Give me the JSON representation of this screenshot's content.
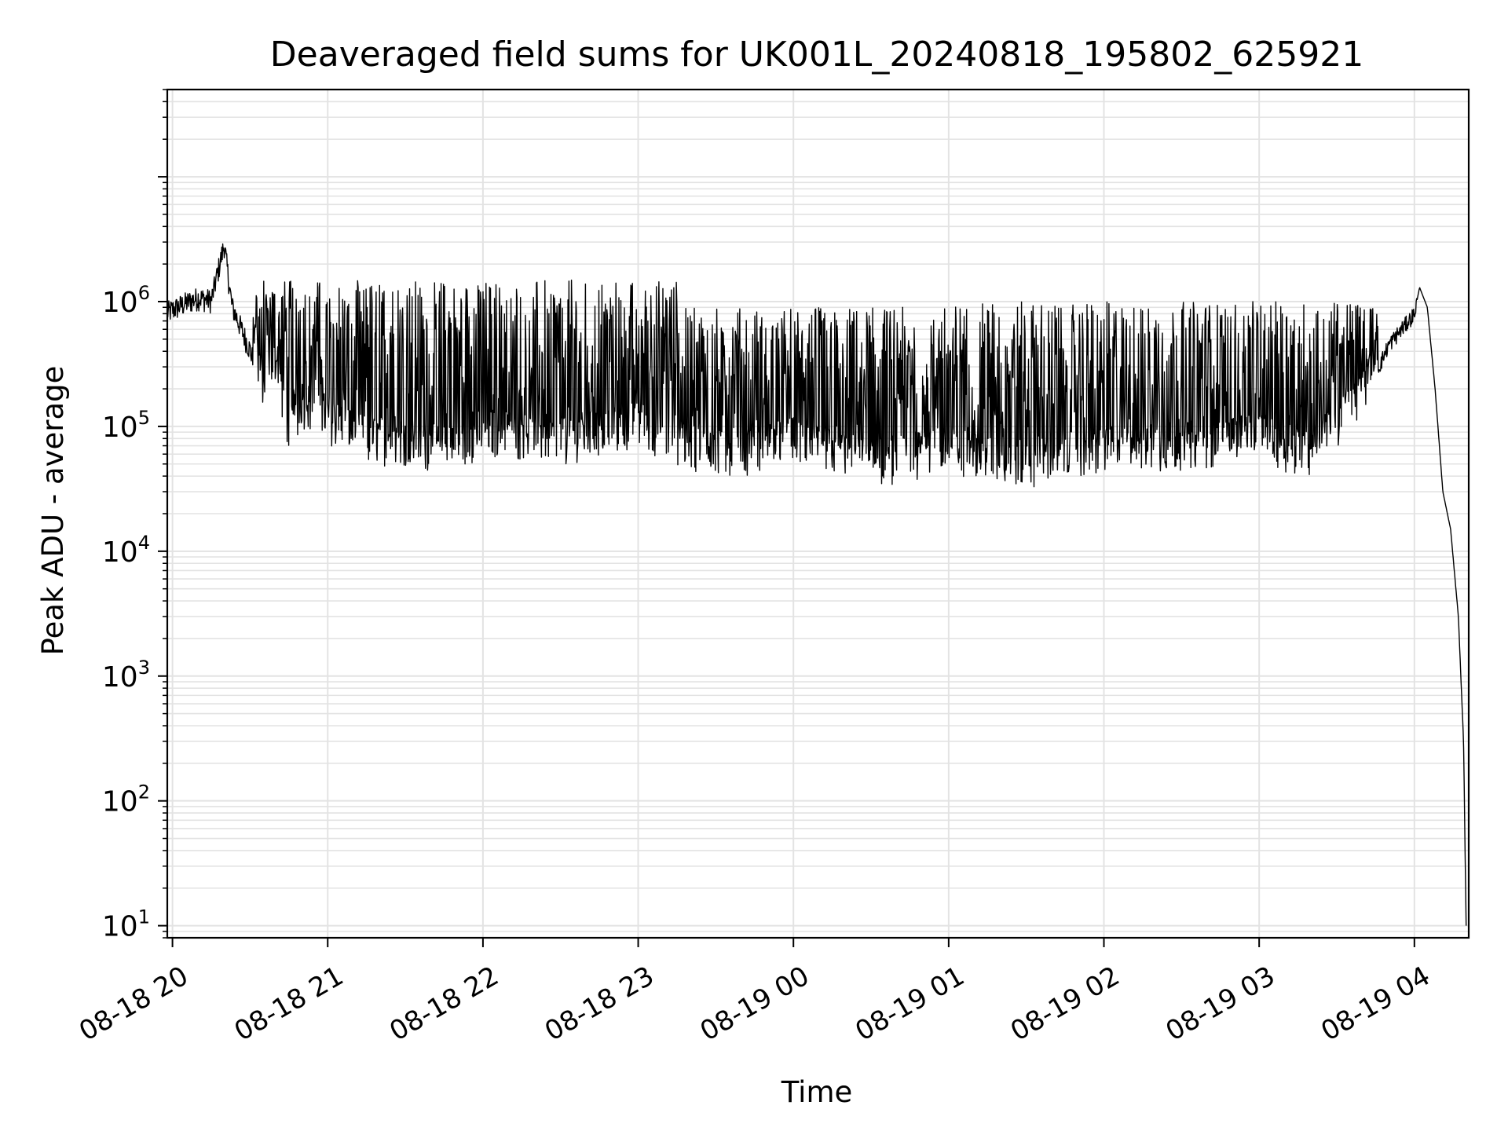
{
  "chart_data": {
    "type": "line",
    "title": "Deaveraged field sums for UK001L_20240818_195802_625921",
    "xlabel": "Time",
    "ylabel": "Peak ADU - average",
    "yscale": "log",
    "ylim": [
      8,
      50000000
    ],
    "xlim": [
      "2024-08-18T19:58:00",
      "2024-08-19T04:21:00"
    ],
    "grid": true,
    "x_ticks": [
      {
        "t": "2024-08-18T20:00",
        "label": "08-18 20"
      },
      {
        "t": "2024-08-18T21:00",
        "label": "08-18 21"
      },
      {
        "t": "2024-08-18T22:00",
        "label": "08-18 22"
      },
      {
        "t": "2024-08-18T23:00",
        "label": "08-18 23"
      },
      {
        "t": "2024-08-19T00:00",
        "label": "08-19 00"
      },
      {
        "t": "2024-08-19T01:00",
        "label": "08-19 01"
      },
      {
        "t": "2024-08-19T02:00",
        "label": "08-19 02"
      },
      {
        "t": "2024-08-19T03:00",
        "label": "08-19 03"
      },
      {
        "t": "2024-08-19T04:00",
        "label": "08-19 04"
      }
    ],
    "y_ticks": [
      {
        "value": 10,
        "base": "10",
        "exp": "1"
      },
      {
        "value": 100,
        "base": "10",
        "exp": "2"
      },
      {
        "value": 1000,
        "base": "10",
        "exp": "3"
      },
      {
        "value": 10000,
        "base": "10",
        "exp": "4"
      },
      {
        "value": 100000,
        "base": "10",
        "exp": "5"
      },
      {
        "value": 1000000,
        "base": "10",
        "exp": "6"
      }
    ],
    "series": [
      {
        "color": "#000000",
        "points": [
          [
            "2024-08-18T19:58",
            800000
          ],
          [
            "2024-08-18T20:05",
            950000
          ],
          [
            "2024-08-18T20:10",
            1050000
          ],
          [
            "2024-08-18T20:15",
            1000000
          ],
          [
            "2024-08-18T20:20",
            2800000
          ],
          [
            "2024-08-18T20:23",
            900000
          ],
          [
            "2024-08-18T20:30",
            400000
          ],
          [
            "2024-08-18T20:35",
            180000
          ],
          [
            "2024-08-18T20:40",
            250000
          ],
          [
            "2024-08-18T20:45",
            75000
          ],
          [
            "2024-08-18T20:50",
            120000
          ],
          [
            "2024-08-18T21:00",
            90000
          ],
          [
            "2024-08-18T21:15",
            60000
          ],
          [
            "2024-08-18T21:30",
            60000
          ],
          [
            "2024-08-18T21:45",
            50000
          ],
          [
            "2024-08-18T22:00",
            70000
          ],
          [
            "2024-08-18T22:30",
            60000
          ],
          [
            "2024-08-18T23:00",
            80000
          ],
          [
            "2024-08-18T23:30",
            45000
          ],
          [
            "2024-08-19T00:00",
            60000
          ],
          [
            "2024-08-19T00:30",
            40000
          ],
          [
            "2024-08-19T01:00",
            50000
          ],
          [
            "2024-08-19T01:30",
            40000
          ],
          [
            "2024-08-19T02:00",
            50000
          ],
          [
            "2024-08-19T02:30",
            55000
          ],
          [
            "2024-08-19T03:00",
            65000
          ],
          [
            "2024-08-19T03:20",
            45000
          ],
          [
            "2024-08-19T03:40",
            150000
          ],
          [
            "2024-08-19T03:50",
            450000
          ],
          [
            "2024-08-19T04:00",
            800000
          ],
          [
            "2024-08-19T04:02",
            1300000
          ],
          [
            "2024-08-19T04:05",
            900000
          ],
          [
            "2024-08-19T04:08",
            200000
          ],
          [
            "2024-08-19T04:11",
            30000
          ],
          [
            "2024-08-19T04:14",
            15000
          ],
          [
            "2024-08-19T04:17",
            3000
          ],
          [
            "2024-08-19T04:19",
            300
          ],
          [
            "2024-08-19T04:20",
            10
          ]
        ]
      }
    ]
  }
}
